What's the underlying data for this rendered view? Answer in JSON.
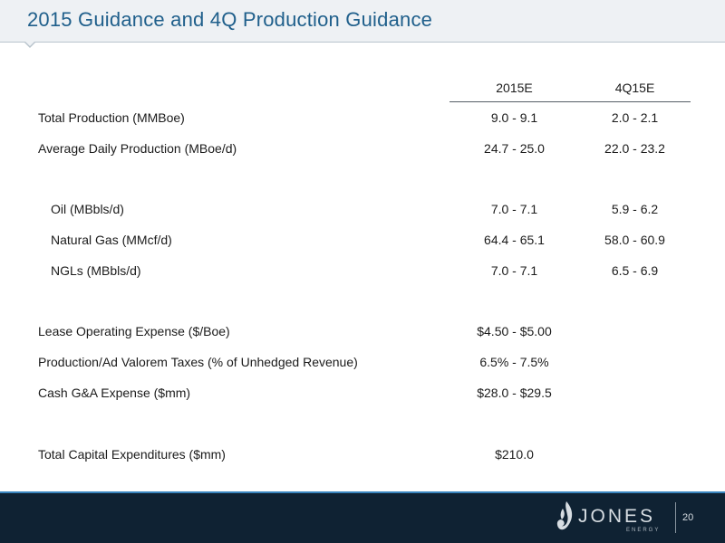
{
  "header": {
    "title": "2015 Guidance and 4Q Production Guidance"
  },
  "table": {
    "columns": [
      "",
      "2015E",
      "4Q15E"
    ],
    "rows": [
      {
        "label": "Total Production (MMBoe)",
        "col1": "9.0 - 9.1",
        "col2": "2.0 - 2.1"
      },
      {
        "label": "Average Daily Production (MBoe/d)",
        "col1": "24.7 - 25.0",
        "col2": "22.0 - 23.2"
      },
      {
        "label": "Oil (MBbls/d)",
        "col1": "7.0 - 7.1",
        "col2": "5.9 - 6.2"
      },
      {
        "label": "Natural Gas (MMcf/d)",
        "col1": "64.4 - 65.1",
        "col2": "58.0 - 60.9"
      },
      {
        "label": "NGLs (MBbls/d)",
        "col1": "7.0 - 7.1",
        "col2": "6.5 - 6.9"
      },
      {
        "label": "Lease Operating Expense ($/Boe)",
        "col1": "$4.50 - $5.00",
        "col2": ""
      },
      {
        "label": "Production/Ad Valorem Taxes (% of Unhedged Revenue)",
        "col1": "6.5% - 7.5%",
        "col2": ""
      },
      {
        "label": "Cash G&A Expense ($mm)",
        "col1": "$28.0 - $29.5",
        "col2": ""
      },
      {
        "label": "Total Capital Expenditures ($mm)",
        "col1": "$210.0",
        "col2": ""
      }
    ]
  },
  "footer": {
    "logo_text": "JONES",
    "logo_subtext": "ENERGY",
    "page_number": "20",
    "logo_icon": "flame-swirl-icon",
    "colors": {
      "footer_bg": "#0f2233",
      "accent": "#3a85bf",
      "title": "#1f5f8b"
    }
  }
}
